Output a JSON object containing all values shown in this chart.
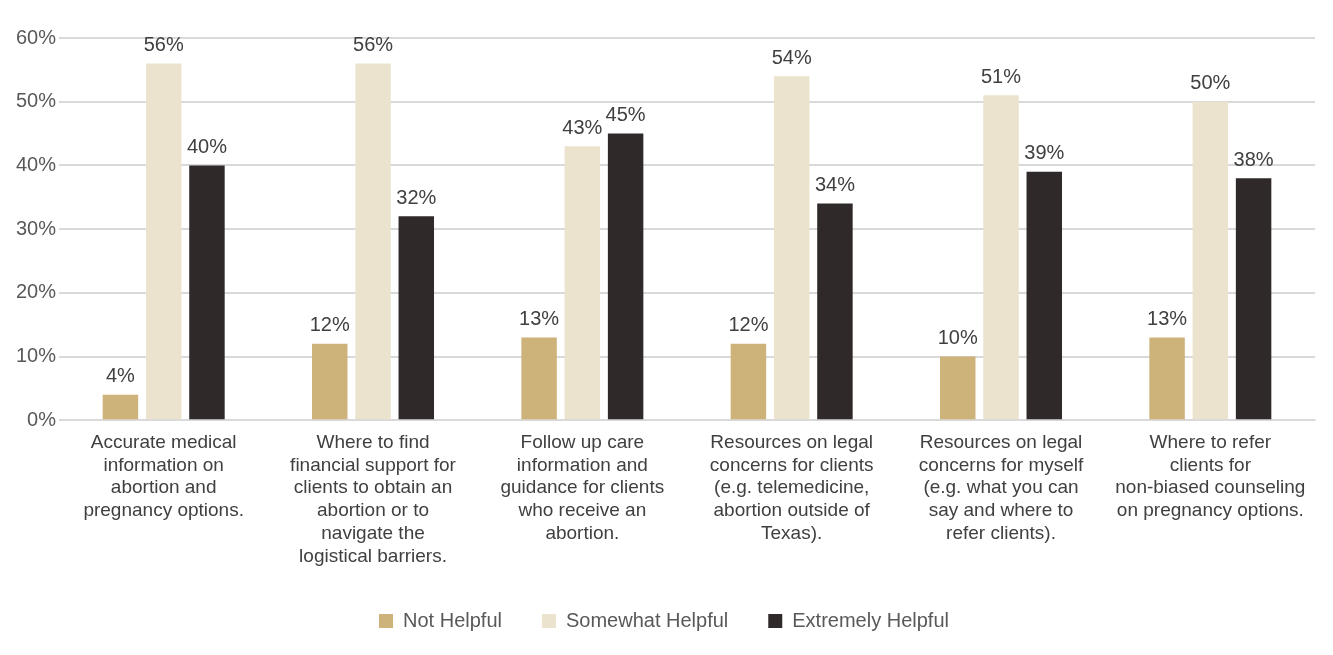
{
  "chart_data": {
    "type": "bar",
    "categories": [
      "Accurate medical information on abortion and pregnancy options.",
      "Where to find financial support for clients to obtain an abortion or to navigate the logistical barriers.",
      "Follow up care information and guidance for clients who receive an abortion.",
      "Resources on legal concerns for clients (e.g. telemedicine, abortion outside of Texas).",
      "Resources on legal concerns for myself (e.g. what you can say and where to refer clients).",
      "Where to refer clients for non-biased counseling on pregnancy options."
    ],
    "series": [
      {
        "name": "Not Helpful",
        "color": "#cdb27a",
        "values": [
          4,
          12,
          13,
          12,
          10,
          13
        ],
        "value_labels": [
          "4%",
          "12%",
          "13%",
          "12%",
          "10%",
          "13%"
        ]
      },
      {
        "name": "Somewhat Helpful",
        "color": "#ebe3cd",
        "values": [
          56,
          56,
          43,
          54,
          51,
          50
        ],
        "value_labels": [
          "56%",
          "56%",
          "43%",
          "54%",
          "51%",
          "50%"
        ]
      },
      {
        "name": "Extremely Helpful",
        "color": "#2f2a29",
        "values": [
          40,
          32,
          45,
          34,
          39,
          38
        ],
        "value_labels": [
          "40%",
          "32%",
          "45%",
          "34%",
          "39%",
          "38%"
        ]
      }
    ],
    "ylim": [
      0,
      60
    ],
    "yticks": [
      {
        "value": 0,
        "label": "0%"
      },
      {
        "value": 10,
        "label": "10%"
      },
      {
        "value": 20,
        "label": "20%"
      },
      {
        "value": 30,
        "label": "30%"
      },
      {
        "value": 40,
        "label": "40%"
      },
      {
        "value": 50,
        "label": "50%"
      },
      {
        "value": 60,
        "label": "60%"
      }
    ],
    "grid": "y",
    "legend": "bottom"
  }
}
